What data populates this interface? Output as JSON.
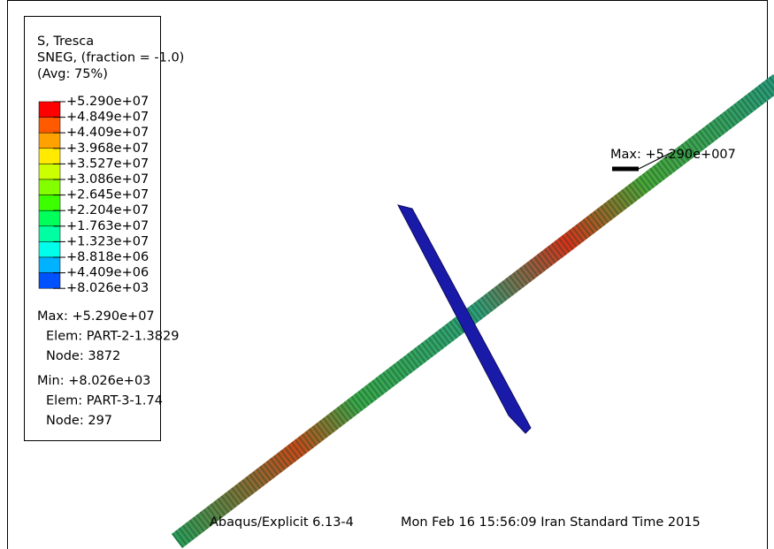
{
  "legend": {
    "lines": [
      "S, Tresca",
      "SNEG, (fraction = -1.0)",
      "(Avg: 75%)"
    ],
    "levels": [
      "+5.290e+07",
      "+4.849e+07",
      "+4.409e+07",
      "+3.968e+07",
      "+3.527e+07",
      "+3.086e+07",
      "+2.645e+07",
      "+2.204e+07",
      "+1.763e+07",
      "+1.323e+07",
      "+8.818e+06",
      "+4.409e+06",
      "+8.026e+03"
    ],
    "colors": [
      "#ff0000",
      "#ff5a00",
      "#ffa200",
      "#ffea00",
      "#ccff00",
      "#84ff00",
      "#3cff00",
      "#00ff5a",
      "#00ffa2",
      "#00ffea",
      "#00b2ff",
      "#0052ff",
      "#0000ff"
    ],
    "max": [
      "Max: +5.290e+07",
      "Elem: PART-2-1.3829",
      "Node: 3872"
    ],
    "min": [
      "Min: +8.026e+03",
      "Elem: PART-3-1.74",
      "Node: 297"
    ]
  },
  "viewport": {
    "max_marker": "Max: +5.290e+007",
    "product": "Abaqus/Explicit 6.13-4",
    "timestamp": "Mon Feb 16 15:56:09 Iran Standard Time 2015"
  }
}
